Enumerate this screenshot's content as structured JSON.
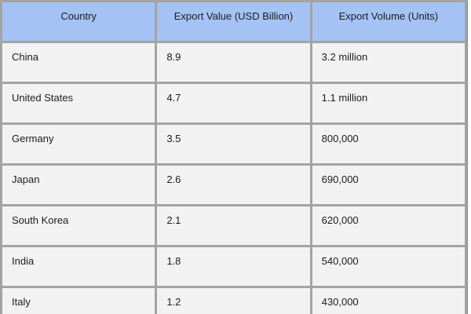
{
  "chart_data": {
    "type": "table",
    "title": "",
    "columns": [
      "Country",
      "Export Value (USD Billion)",
      "Export Volume (Units)"
    ],
    "rows": [
      [
        "China",
        "8.9",
        "3.2 million"
      ],
      [
        "United States",
        "4.7",
        "1.1 million"
      ],
      [
        "Germany",
        "3.5",
        "800,000"
      ],
      [
        "Japan",
        "2.6",
        "690,000"
      ],
      [
        "South Korea",
        "2.1",
        "620,000"
      ],
      [
        "India",
        "1.8",
        "540,000"
      ],
      [
        "Italy",
        "1.2",
        "430,000"
      ]
    ]
  },
  "table": {
    "columns": [
      "Country",
      "Export Value (USD Billion)",
      "Export Volume (Units)"
    ],
    "rows": [
      [
        "China",
        "8.9",
        "3.2 million"
      ],
      [
        "United States",
        "4.7",
        "1.1 million"
      ],
      [
        "Germany",
        "3.5",
        "800,000"
      ],
      [
        "Japan",
        "2.6",
        "690,000"
      ],
      [
        "South Korea",
        "2.1",
        "620,000"
      ],
      [
        "India",
        "1.8",
        "540,000"
      ],
      [
        "Italy",
        "1.2",
        "430,000"
      ]
    ]
  },
  "colors": {
    "header_bg": "#a4c2f4",
    "row_bg": "#f2f2f2",
    "grid_border": "#a3a3a3",
    "outer_border": "#8a8a8a",
    "text": "#1c1c1c"
  }
}
